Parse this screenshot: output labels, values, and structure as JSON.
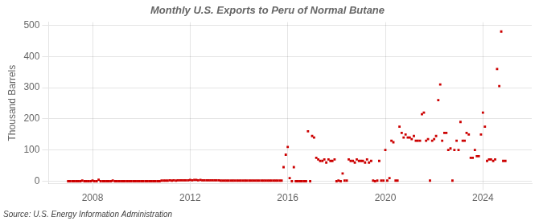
{
  "chart_data": {
    "type": "scatter",
    "title": "Monthly U.S. Exports to Peru of Normal Butane",
    "ylabel": "Thousand Barrels",
    "annotations": [
      "Source: U.S. Energy Information Administration"
    ],
    "color": "#cc0000",
    "marker": "square",
    "grid": true,
    "xlim": [
      2006.2,
      2026.0
    ],
    "ylim": [
      -8,
      510
    ],
    "xticks": [
      2008,
      2012,
      2016,
      2020,
      2024
    ],
    "yticks": [
      0,
      100,
      200,
      300,
      400,
      500
    ],
    "x": [
      2007.0,
      2007.08,
      2007.17,
      2007.25,
      2007.33,
      2007.42,
      2007.5,
      2007.58,
      2007.67,
      2007.75,
      2007.83,
      2007.92,
      2008.0,
      2008.08,
      2008.17,
      2008.25,
      2008.33,
      2008.42,
      2008.5,
      2008.58,
      2008.67,
      2008.75,
      2008.83,
      2008.92,
      2009.0,
      2009.08,
      2009.17,
      2009.25,
      2009.33,
      2009.42,
      2009.5,
      2009.58,
      2009.67,
      2009.75,
      2009.83,
      2009.92,
      2010.0,
      2010.08,
      2010.17,
      2010.25,
      2010.33,
      2010.42,
      2010.5,
      2010.58,
      2010.67,
      2010.75,
      2010.83,
      2010.92,
      2011.0,
      2011.08,
      2011.17,
      2011.25,
      2011.33,
      2011.42,
      2011.5,
      2011.58,
      2011.67,
      2011.75,
      2011.83,
      2011.92,
      2012.0,
      2012.08,
      2012.17,
      2012.25,
      2012.33,
      2012.42,
      2012.5,
      2012.58,
      2012.67,
      2012.75,
      2012.83,
      2012.92,
      2013.0,
      2013.08,
      2013.17,
      2013.25,
      2013.33,
      2013.42,
      2013.5,
      2013.58,
      2013.67,
      2013.75,
      2013.83,
      2013.92,
      2014.0,
      2014.08,
      2014.17,
      2014.25,
      2014.33,
      2014.42,
      2014.5,
      2014.58,
      2014.67,
      2014.75,
      2014.83,
      2014.92,
      2015.0,
      2015.08,
      2015.17,
      2015.25,
      2015.33,
      2015.42,
      2015.5,
      2015.58,
      2015.67,
      2015.75,
      2015.83,
      2015.92,
      2016.0,
      2016.08,
      2016.17,
      2016.25,
      2016.33,
      2016.42,
      2016.5,
      2016.58,
      2016.67,
      2016.75,
      2016.83,
      2016.92,
      2017.0,
      2017.08,
      2017.17,
      2017.25,
      2017.33,
      2017.42,
      2017.5,
      2017.58,
      2017.67,
      2017.75,
      2017.83,
      2017.92,
      2018.0,
      2018.08,
      2018.17,
      2018.25,
      2018.33,
      2018.42,
      2018.5,
      2018.58,
      2018.67,
      2018.75,
      2018.83,
      2018.92,
      2019.0,
      2019.08,
      2019.17,
      2019.25,
      2019.33,
      2019.42,
      2019.5,
      2019.58,
      2019.67,
      2019.75,
      2019.83,
      2019.92,
      2020.0,
      2020.08,
      2020.17,
      2020.25,
      2020.33,
      2020.42,
      2020.5,
      2020.58,
      2020.67,
      2020.75,
      2020.83,
      2020.92,
      2021.0,
      2021.08,
      2021.17,
      2021.25,
      2021.33,
      2021.42,
      2021.5,
      2021.58,
      2021.67,
      2021.75,
      2021.83,
      2021.92,
      2022.0,
      2022.08,
      2022.17,
      2022.25,
      2022.33,
      2022.42,
      2022.5,
      2022.58,
      2022.67,
      2022.75,
      2022.83,
      2022.92,
      2023.0,
      2023.08,
      2023.17,
      2023.25,
      2023.33,
      2023.42,
      2023.5,
      2023.58,
      2023.67,
      2023.75,
      2023.83,
      2023.92,
      2024.0,
      2024.08,
      2024.17,
      2024.25,
      2024.33,
      2024.42,
      2024.5,
      2024.58,
      2024.67,
      2024.75,
      2024.83,
      2024.92
    ],
    "values": [
      0,
      0,
      0,
      0,
      0,
      0,
      0,
      2,
      0,
      0,
      0,
      0,
      2,
      0,
      0,
      5,
      0,
      0,
      0,
      0,
      0,
      0,
      2,
      0,
      0,
      0,
      0,
      0,
      0,
      0,
      0,
      0,
      0,
      0,
      0,
      0,
      0,
      0,
      0,
      0,
      0,
      0,
      0,
      0,
      0,
      0,
      2,
      2,
      2,
      2,
      3,
      2,
      3,
      2,
      3,
      3,
      3,
      3,
      3,
      3,
      4,
      3,
      4,
      4,
      3,
      4,
      3,
      3,
      3,
      3,
      3,
      3,
      3,
      3,
      3,
      2,
      2,
      2,
      2,
      2,
      2,
      2,
      2,
      2,
      2,
      2,
      2,
      2,
      2,
      2,
      2,
      2,
      2,
      2,
      2,
      2,
      2,
      2,
      2,
      2,
      2,
      2,
      2,
      2,
      2,
      2,
      45,
      85,
      110,
      10,
      0,
      45,
      0,
      0,
      0,
      0,
      0,
      0,
      160,
      0,
      145,
      140,
      75,
      70,
      65,
      65,
      70,
      60,
      70,
      65,
      65,
      70,
      0,
      2,
      0,
      25,
      2,
      2,
      70,
      65,
      65,
      60,
      70,
      65,
      65,
      65,
      60,
      70,
      60,
      65,
      2,
      0,
      2,
      65,
      2,
      2,
      100,
      2,
      10,
      130,
      125,
      2,
      2,
      175,
      155,
      140,
      150,
      140,
      140,
      135,
      145,
      130,
      130,
      130,
      215,
      220,
      130,
      135,
      2,
      130,
      135,
      145,
      260,
      310,
      130,
      155,
      155,
      100,
      105,
      2,
      100,
      130,
      100,
      190,
      130,
      130,
      155,
      150,
      75,
      75,
      100,
      80,
      80,
      150,
      220,
      175,
      65,
      70,
      70,
      65,
      70,
      360,
      305,
      480,
      65,
      65
    ]
  }
}
